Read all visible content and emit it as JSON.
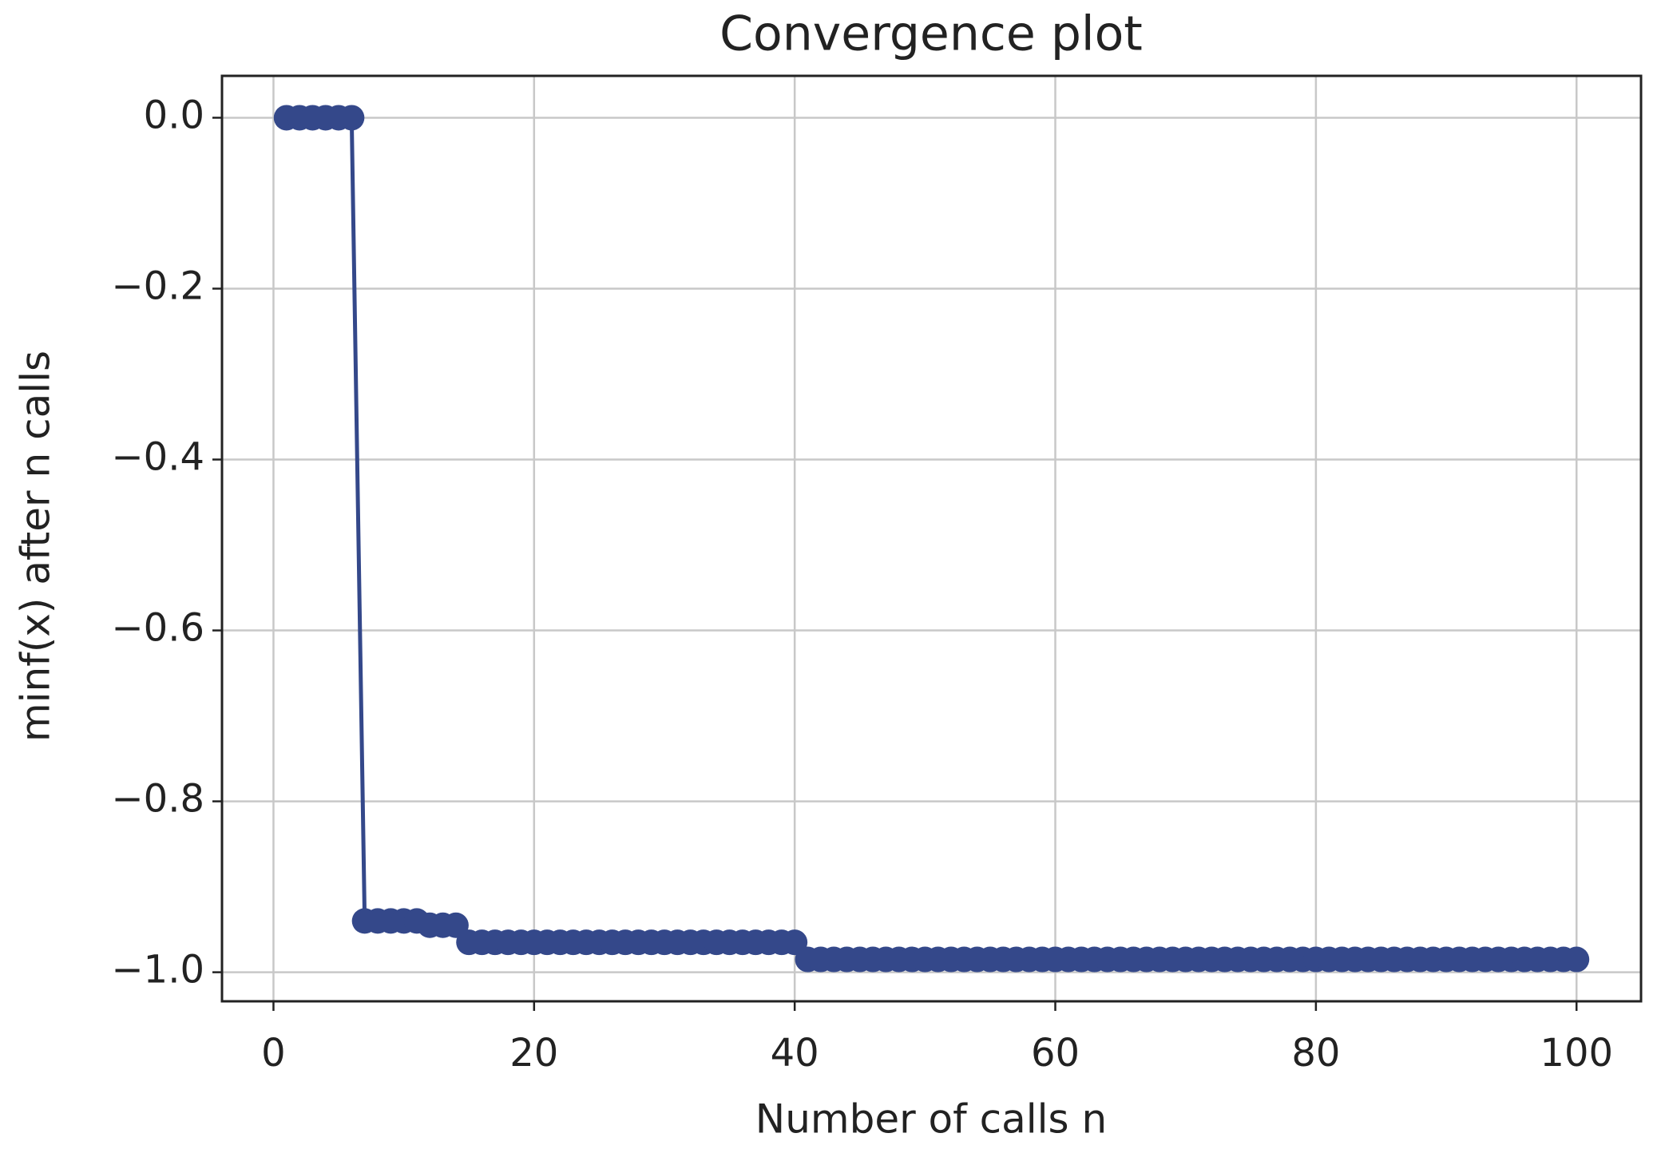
{
  "chart_data": {
    "type": "line",
    "title": "Convergence plot",
    "xlabel": "Number of calls n",
    "ylabel": "minf(x) after n calls",
    "x": [
      1,
      2,
      3,
      4,
      5,
      6,
      7,
      8,
      9,
      10,
      11,
      12,
      13,
      14,
      15,
      16,
      17,
      18,
      19,
      20,
      21,
      22,
      23,
      24,
      25,
      26,
      27,
      28,
      29,
      30,
      31,
      32,
      33,
      34,
      35,
      36,
      37,
      38,
      39,
      40,
      41,
      42,
      43,
      44,
      45,
      46,
      47,
      48,
      49,
      50,
      51,
      52,
      53,
      54,
      55,
      56,
      57,
      58,
      59,
      60,
      61,
      62,
      63,
      64,
      65,
      66,
      67,
      68,
      69,
      70,
      71,
      72,
      73,
      74,
      75,
      76,
      77,
      78,
      79,
      80,
      81,
      82,
      83,
      84,
      85,
      86,
      87,
      88,
      89,
      90,
      91,
      92,
      93,
      94,
      95,
      96,
      97,
      98,
      99,
      100
    ],
    "series": [
      {
        "color": "#34488a",
        "marker": "o",
        "values": [
          0,
          0,
          0,
          0,
          0,
          0,
          -0.94,
          -0.94,
          -0.94,
          -0.94,
          -0.94,
          -0.945,
          -0.945,
          -0.945,
          -0.965,
          -0.965,
          -0.965,
          -0.965,
          -0.965,
          -0.965,
          -0.965,
          -0.965,
          -0.965,
          -0.965,
          -0.965,
          -0.965,
          -0.965,
          -0.965,
          -0.965,
          -0.965,
          -0.965,
          -0.965,
          -0.965,
          -0.965,
          -0.965,
          -0.965,
          -0.965,
          -0.965,
          -0.965,
          -0.965,
          -0.985,
          -0.985,
          -0.985,
          -0.985,
          -0.985,
          -0.985,
          -0.985,
          -0.985,
          -0.985,
          -0.985,
          -0.985,
          -0.985,
          -0.985,
          -0.985,
          -0.985,
          -0.985,
          -0.985,
          -0.985,
          -0.985,
          -0.985,
          -0.985,
          -0.985,
          -0.985,
          -0.985,
          -0.985,
          -0.985,
          -0.985,
          -0.985,
          -0.985,
          -0.985,
          -0.985,
          -0.985,
          -0.985,
          -0.985,
          -0.985,
          -0.985,
          -0.985,
          -0.985,
          -0.985,
          -0.985,
          -0.985,
          -0.985,
          -0.985,
          -0.985,
          -0.985,
          -0.985,
          -0.985,
          -0.985,
          -0.985,
          -0.985,
          -0.985,
          -0.985,
          -0.985,
          -0.985,
          -0.985,
          -0.985,
          -0.985,
          -0.985,
          -0.985,
          -0.985
        ]
      }
    ],
    "xlim": [
      -3.95,
      104.95
    ],
    "xticks": [
      0,
      20,
      40,
      60,
      80,
      100
    ],
    "ylim": [
      -1.034,
      0.049
    ],
    "yticks": [
      {
        "value": 0,
        "label": "0.0"
      },
      {
        "value": -0.2,
        "label": "−0.2"
      },
      {
        "value": -0.4,
        "label": "−0.4"
      },
      {
        "value": -0.6,
        "label": "−0.6"
      },
      {
        "value": -0.8,
        "label": "−0.8"
      },
      {
        "value": -1.0,
        "label": "−1.0"
      }
    ],
    "grid": true
  }
}
